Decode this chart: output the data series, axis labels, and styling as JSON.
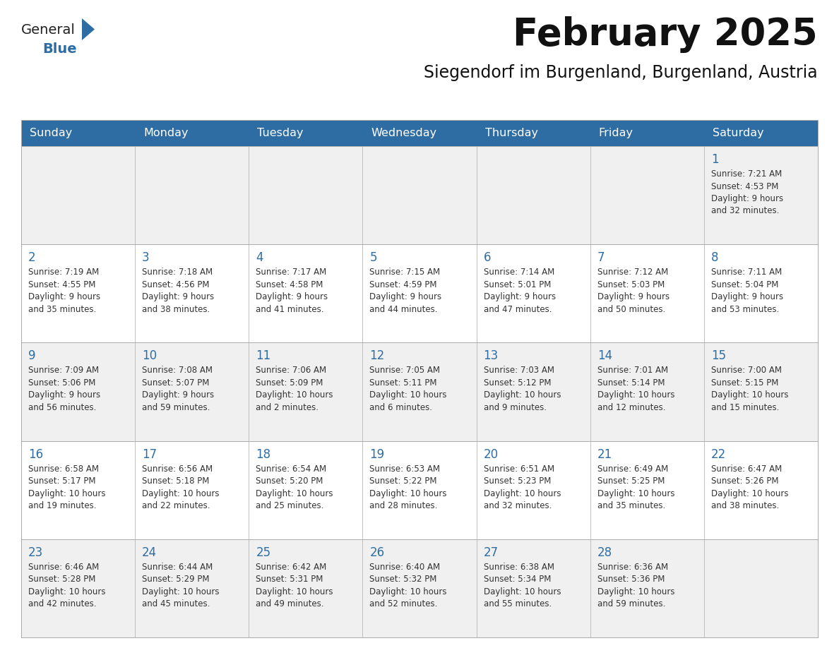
{
  "title": "February 2025",
  "subtitle": "Siegendorf im Burgenland, Burgenland, Austria",
  "header_bg_color": "#2E6DA4",
  "header_text_color": "#FFFFFF",
  "day_number_color": "#2E6DA4",
  "cell_text_color": "#333333",
  "grid_line_color": "#AAAAAA",
  "row_bg_colors": [
    "#F0F0F0",
    "#FFFFFF",
    "#F0F0F0",
    "#FFFFFF",
    "#F0F0F0"
  ],
  "days_of_week": [
    "Sunday",
    "Monday",
    "Tuesday",
    "Wednesday",
    "Thursday",
    "Friday",
    "Saturday"
  ],
  "calendar_data": [
    [
      {
        "day": "",
        "info": ""
      },
      {
        "day": "",
        "info": ""
      },
      {
        "day": "",
        "info": ""
      },
      {
        "day": "",
        "info": ""
      },
      {
        "day": "",
        "info": ""
      },
      {
        "day": "",
        "info": ""
      },
      {
        "day": "1",
        "info": "Sunrise: 7:21 AM\nSunset: 4:53 PM\nDaylight: 9 hours\nand 32 minutes."
      }
    ],
    [
      {
        "day": "2",
        "info": "Sunrise: 7:19 AM\nSunset: 4:55 PM\nDaylight: 9 hours\nand 35 minutes."
      },
      {
        "day": "3",
        "info": "Sunrise: 7:18 AM\nSunset: 4:56 PM\nDaylight: 9 hours\nand 38 minutes."
      },
      {
        "day": "4",
        "info": "Sunrise: 7:17 AM\nSunset: 4:58 PM\nDaylight: 9 hours\nand 41 minutes."
      },
      {
        "day": "5",
        "info": "Sunrise: 7:15 AM\nSunset: 4:59 PM\nDaylight: 9 hours\nand 44 minutes."
      },
      {
        "day": "6",
        "info": "Sunrise: 7:14 AM\nSunset: 5:01 PM\nDaylight: 9 hours\nand 47 minutes."
      },
      {
        "day": "7",
        "info": "Sunrise: 7:12 AM\nSunset: 5:03 PM\nDaylight: 9 hours\nand 50 minutes."
      },
      {
        "day": "8",
        "info": "Sunrise: 7:11 AM\nSunset: 5:04 PM\nDaylight: 9 hours\nand 53 minutes."
      }
    ],
    [
      {
        "day": "9",
        "info": "Sunrise: 7:09 AM\nSunset: 5:06 PM\nDaylight: 9 hours\nand 56 minutes."
      },
      {
        "day": "10",
        "info": "Sunrise: 7:08 AM\nSunset: 5:07 PM\nDaylight: 9 hours\nand 59 minutes."
      },
      {
        "day": "11",
        "info": "Sunrise: 7:06 AM\nSunset: 5:09 PM\nDaylight: 10 hours\nand 2 minutes."
      },
      {
        "day": "12",
        "info": "Sunrise: 7:05 AM\nSunset: 5:11 PM\nDaylight: 10 hours\nand 6 minutes."
      },
      {
        "day": "13",
        "info": "Sunrise: 7:03 AM\nSunset: 5:12 PM\nDaylight: 10 hours\nand 9 minutes."
      },
      {
        "day": "14",
        "info": "Sunrise: 7:01 AM\nSunset: 5:14 PM\nDaylight: 10 hours\nand 12 minutes."
      },
      {
        "day": "15",
        "info": "Sunrise: 7:00 AM\nSunset: 5:15 PM\nDaylight: 10 hours\nand 15 minutes."
      }
    ],
    [
      {
        "day": "16",
        "info": "Sunrise: 6:58 AM\nSunset: 5:17 PM\nDaylight: 10 hours\nand 19 minutes."
      },
      {
        "day": "17",
        "info": "Sunrise: 6:56 AM\nSunset: 5:18 PM\nDaylight: 10 hours\nand 22 minutes."
      },
      {
        "day": "18",
        "info": "Sunrise: 6:54 AM\nSunset: 5:20 PM\nDaylight: 10 hours\nand 25 minutes."
      },
      {
        "day": "19",
        "info": "Sunrise: 6:53 AM\nSunset: 5:22 PM\nDaylight: 10 hours\nand 28 minutes."
      },
      {
        "day": "20",
        "info": "Sunrise: 6:51 AM\nSunset: 5:23 PM\nDaylight: 10 hours\nand 32 minutes."
      },
      {
        "day": "21",
        "info": "Sunrise: 6:49 AM\nSunset: 5:25 PM\nDaylight: 10 hours\nand 35 minutes."
      },
      {
        "day": "22",
        "info": "Sunrise: 6:47 AM\nSunset: 5:26 PM\nDaylight: 10 hours\nand 38 minutes."
      }
    ],
    [
      {
        "day": "23",
        "info": "Sunrise: 6:46 AM\nSunset: 5:28 PM\nDaylight: 10 hours\nand 42 minutes."
      },
      {
        "day": "24",
        "info": "Sunrise: 6:44 AM\nSunset: 5:29 PM\nDaylight: 10 hours\nand 45 minutes."
      },
      {
        "day": "25",
        "info": "Sunrise: 6:42 AM\nSunset: 5:31 PM\nDaylight: 10 hours\nand 49 minutes."
      },
      {
        "day": "26",
        "info": "Sunrise: 6:40 AM\nSunset: 5:32 PM\nDaylight: 10 hours\nand 52 minutes."
      },
      {
        "day": "27",
        "info": "Sunrise: 6:38 AM\nSunset: 5:34 PM\nDaylight: 10 hours\nand 55 minutes."
      },
      {
        "day": "28",
        "info": "Sunrise: 6:36 AM\nSunset: 5:36 PM\nDaylight: 10 hours\nand 59 minutes."
      },
      {
        "day": "",
        "info": ""
      }
    ]
  ],
  "logo_text_general": "General",
  "logo_text_blue": "Blue",
  "logo_color_general": "#222222",
  "logo_color_blue": "#2E6DA4",
  "logo_triangle_color": "#2E6DA4",
  "title_fontsize": 38,
  "subtitle_fontsize": 17,
  "header_fontsize": 11.5,
  "day_number_fontsize": 12,
  "cell_info_fontsize": 8.5
}
